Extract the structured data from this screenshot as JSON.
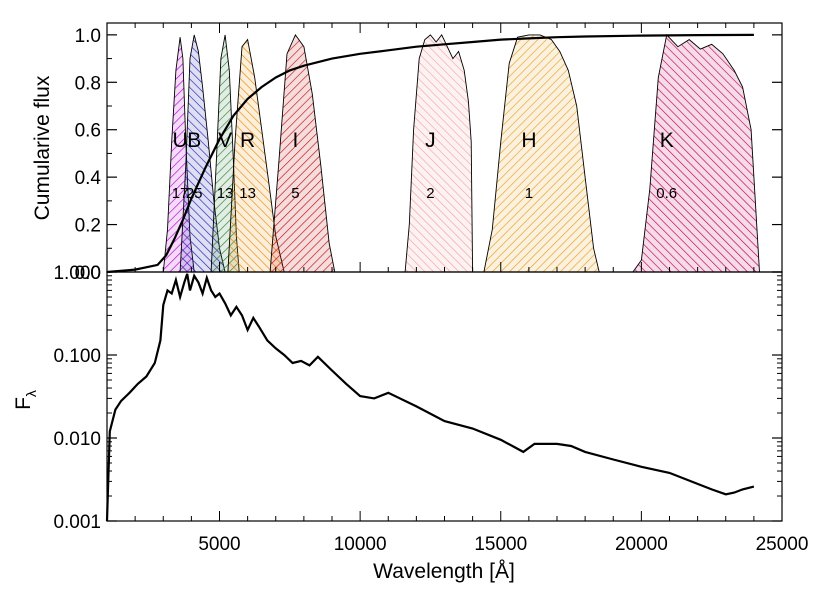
{
  "chart_data": [
    {
      "type": "area",
      "ylabel": "Cumularive flux",
      "xlim": [
        1000,
        25000
      ],
      "ylim": [
        0,
        1.05
      ],
      "yticks": [
        "0.0",
        "0.2",
        "0.4",
        "0.6",
        "0.8",
        "1.0"
      ],
      "cumulative_curve": {
        "x": [
          1000,
          2000,
          2800,
          3100,
          3400,
          3700,
          4000,
          4500,
          5000,
          5500,
          6000,
          6500,
          7000,
          7500,
          8000,
          9000,
          10000,
          11000,
          12000,
          13000,
          14000,
          15000,
          16000,
          17000,
          18000,
          20000,
          22000,
          24000
        ],
        "y": [
          0.0,
          0.01,
          0.03,
          0.07,
          0.14,
          0.22,
          0.31,
          0.44,
          0.56,
          0.66,
          0.73,
          0.78,
          0.82,
          0.85,
          0.87,
          0.9,
          0.92,
          0.935,
          0.95,
          0.96,
          0.97,
          0.98,
          0.985,
          0.99,
          0.993,
          0.997,
          0.999,
          1.0
        ]
      },
      "bands": [
        {
          "name": "U",
          "label": "17",
          "color": "#b000d0",
          "x": [
            3000,
            3150,
            3300,
            3450,
            3600,
            3700,
            3800,
            3950,
            4100
          ],
          "y": [
            0,
            0.18,
            0.55,
            0.85,
            0.99,
            0.9,
            0.55,
            0.15,
            0
          ]
        },
        {
          "name": "B",
          "label": "25",
          "color": "#2020b0",
          "x": [
            3600,
            3800,
            3950,
            4100,
            4250,
            4400,
            4600,
            4800,
            5000,
            5200
          ],
          "y": [
            0,
            0.45,
            0.9,
            1.0,
            0.93,
            0.78,
            0.55,
            0.3,
            0.1,
            0
          ]
        },
        {
          "name": "V",
          "label": "13",
          "color": "#2f7d3a",
          "x": [
            4700,
            4900,
            5050,
            5200,
            5350,
            5500,
            5600,
            5700
          ],
          "y": [
            0,
            0.5,
            0.9,
            1.0,
            0.85,
            0.45,
            0.15,
            0
          ]
        },
        {
          "name": "R",
          "label": "13",
          "color": "#e88a00",
          "x": [
            5300,
            5550,
            5800,
            6000,
            6250,
            6500,
            6750,
            7000,
            7300
          ],
          "y": [
            0,
            0.55,
            0.95,
            0.98,
            0.82,
            0.6,
            0.38,
            0.15,
            0
          ]
        },
        {
          "name": "I",
          "label": "5",
          "color": "#c01010",
          "x": [
            6800,
            7100,
            7400,
            7700,
            8000,
            8300,
            8600,
            8900,
            9100
          ],
          "y": [
            0,
            0.45,
            0.92,
            1.0,
            0.95,
            0.75,
            0.45,
            0.12,
            0
          ]
        },
        {
          "name": "J",
          "label": "2",
          "color": "#f2a2a2",
          "x": [
            11600,
            11750,
            11900,
            12100,
            12300,
            12500,
            12700,
            12900,
            13100,
            13300,
            13500,
            13700,
            13850,
            13950,
            14000
          ],
          "y": [
            0,
            0.2,
            0.6,
            0.9,
            0.98,
            1.0,
            0.97,
            1.0,
            0.95,
            0.9,
            0.93,
            0.85,
            0.72,
            0.55,
            0
          ]
        },
        {
          "name": "H",
          "label": "1",
          "color": "#e8a020",
          "x": [
            14400,
            14700,
            15000,
            15300,
            15600,
            16000,
            16400,
            16800,
            17100,
            17400,
            17700,
            18000,
            18300,
            18500
          ],
          "y": [
            0,
            0.18,
            0.55,
            0.88,
            0.99,
            1.0,
            1.0,
            0.98,
            0.93,
            0.85,
            0.7,
            0.4,
            0.1,
            0
          ]
        },
        {
          "name": "K",
          "label": "0.6",
          "color": "#c0005a",
          "x": [
            19700,
            20000,
            20300,
            20600,
            20900,
            21300,
            21700,
            22100,
            22500,
            22900,
            23300,
            23600,
            23900,
            24200
          ],
          "y": [
            0,
            0.05,
            0.35,
            0.82,
            1.0,
            0.95,
            0.98,
            0.94,
            0.96,
            0.92,
            0.85,
            0.78,
            0.6,
            0
          ]
        }
      ]
    },
    {
      "type": "line",
      "xlabel": "Wavelength [Å]",
      "ylabel": "F",
      "ylabel_sub": "λ",
      "xlim": [
        1000,
        25000
      ],
      "ylim": [
        0.001,
        1.0
      ],
      "yscale": "log",
      "xticks": [
        "5000",
        "10000",
        "15000",
        "20000",
        "25000"
      ],
      "yticks": [
        "0.001",
        "0.010",
        "0.100",
        "1.000"
      ],
      "series": [
        {
          "x": [
            1000,
            1100,
            1300,
            1500,
            1800,
            2100,
            2400,
            2700,
            2900,
            3000,
            3150,
            3300,
            3450,
            3600,
            3750,
            3850,
            3950,
            4100,
            4250,
            4400,
            4550,
            4700,
            4850,
            5000,
            5200,
            5400,
            5600,
            5800,
            6000,
            6200,
            6400,
            6700,
            7000,
            7300,
            7600,
            7900,
            8200,
            8500,
            9000,
            9500,
            10000,
            10500,
            11000,
            12000,
            13000,
            14000,
            15000,
            15800,
            16200,
            16600,
            17000,
            17500,
            18000,
            19000,
            20000,
            21000,
            22000,
            22500,
            23000,
            23300,
            23600,
            24000
          ],
          "y": [
            0.001,
            0.012,
            0.022,
            0.028,
            0.035,
            0.045,
            0.055,
            0.08,
            0.15,
            0.4,
            0.6,
            0.55,
            0.8,
            0.5,
            0.75,
            0.95,
            0.6,
            0.9,
            0.75,
            0.55,
            0.85,
            0.6,
            0.5,
            0.55,
            0.42,
            0.3,
            0.38,
            0.3,
            0.2,
            0.28,
            0.22,
            0.15,
            0.12,
            0.1,
            0.08,
            0.085,
            0.075,
            0.095,
            0.065,
            0.045,
            0.032,
            0.03,
            0.035,
            0.024,
            0.016,
            0.013,
            0.0095,
            0.0068,
            0.0085,
            0.0085,
            0.0085,
            0.008,
            0.0068,
            0.0055,
            0.0045,
            0.0038,
            0.0028,
            0.0024,
            0.0021,
            0.0022,
            0.0024,
            0.0026
          ]
        }
      ]
    }
  ]
}
